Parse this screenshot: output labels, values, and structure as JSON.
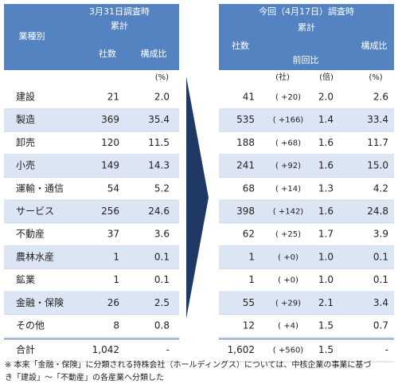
{
  "left": {
    "title": "3月31日調査時",
    "category_header": "業種別",
    "cumulative": "累計",
    "col_count": "社数",
    "col_share": "構成比",
    "unit_share": "(%)"
  },
  "right": {
    "title": "今回（4月17日）調査時",
    "cumulative": "累計",
    "col_count": "社数",
    "col_change": "前回比",
    "col_share": "構成比",
    "unit_count": "(社)",
    "unit_ratio": "(倍)",
    "unit_share": "(%)"
  },
  "rows": [
    [
      "建設",
      "21",
      "2.0",
      "41",
      "( +20)",
      "2.0",
      "2.6"
    ],
    [
      "製造",
      "369",
      "35.4",
      "535",
      "( +166)",
      "1.4",
      "33.4"
    ],
    [
      "卸売",
      "120",
      "11.5",
      "188",
      "( +68)",
      "1.6",
      "11.7"
    ],
    [
      "小売",
      "149",
      "14.3",
      "241",
      "( +92)",
      "1.6",
      "15.0"
    ],
    [
      "運輸・通信",
      "54",
      "5.2",
      "68",
      "( +14)",
      "1.3",
      "4.2"
    ],
    [
      "サービス",
      "256",
      "24.6",
      "398",
      "( +142)",
      "1.6",
      "24.8"
    ],
    [
      "不動産",
      "37",
      "3.6",
      "62",
      "( +25)",
      "1.7",
      "3.9"
    ],
    [
      "農林水産",
      "1",
      "0.1",
      "1",
      "( +0)",
      "1.0",
      "0.1"
    ],
    [
      "鉱業",
      "1",
      "0.1",
      "1",
      "( +0)",
      "1.0",
      "0.1"
    ],
    [
      "金融・保険",
      "26",
      "2.5",
      "55",
      "( +29)",
      "2.1",
      "3.4"
    ],
    [
      "その他",
      "8",
      "0.8",
      "12",
      "( +4)",
      "1.5",
      "0.7"
    ]
  ],
  "total": [
    "合計",
    "1,042",
    "-",
    "1,602",
    "( +560)",
    "1.5",
    "-"
  ],
  "note": [
    "※ 本来「金融・保険」に分類される持株会社（ホールディングス）については、中核企業の事業に基づ",
    "き「建設」～「不動産」の各産業へ分類した"
  ]
}
